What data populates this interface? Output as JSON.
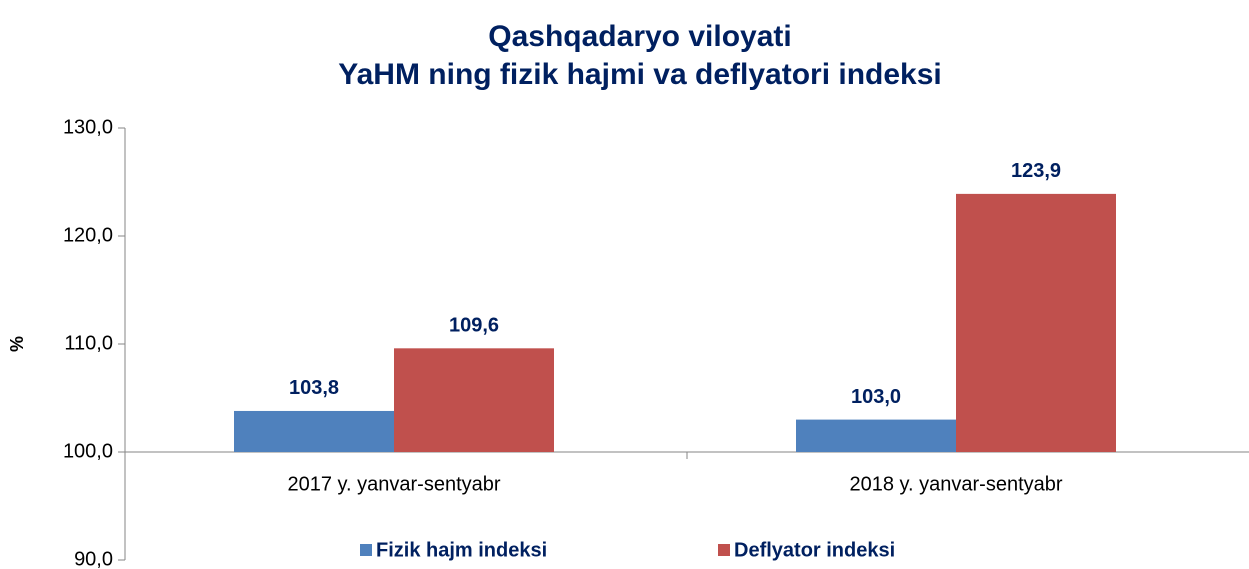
{
  "chart_data": {
    "type": "bar",
    "title": "Qashqadaryo viloyati",
    "subtitle": "YaHM ning fizik hajmi va deflyatori indeksi",
    "ylabel": "%",
    "categories": [
      "2017 y. yanvar-sentyabr",
      "2018 y. yanvar-sentyabr"
    ],
    "series": [
      {
        "name": "Fizik hajm indeksi",
        "color": "#4f81bd",
        "values": [
          103.8,
          103.0
        ],
        "value_labels": [
          "103,8",
          "103,0"
        ]
      },
      {
        "name": "Deflyator indeksi",
        "color": "#c0504d",
        "values": [
          109.6,
          123.9
        ],
        "value_labels": [
          "109,6",
          "123,9"
        ]
      }
    ],
    "ylim": [
      90,
      130
    ],
    "yticks": [
      {
        "value": 90,
        "label": "90,0"
      },
      {
        "value": 100,
        "label": "100,0"
      },
      {
        "value": 110,
        "label": "110,0"
      },
      {
        "value": 120,
        "label": "120,0"
      },
      {
        "value": 130,
        "label": "130,0"
      }
    ],
    "x_axis_crosses": 100,
    "legend": "bottom",
    "grid": false
  }
}
